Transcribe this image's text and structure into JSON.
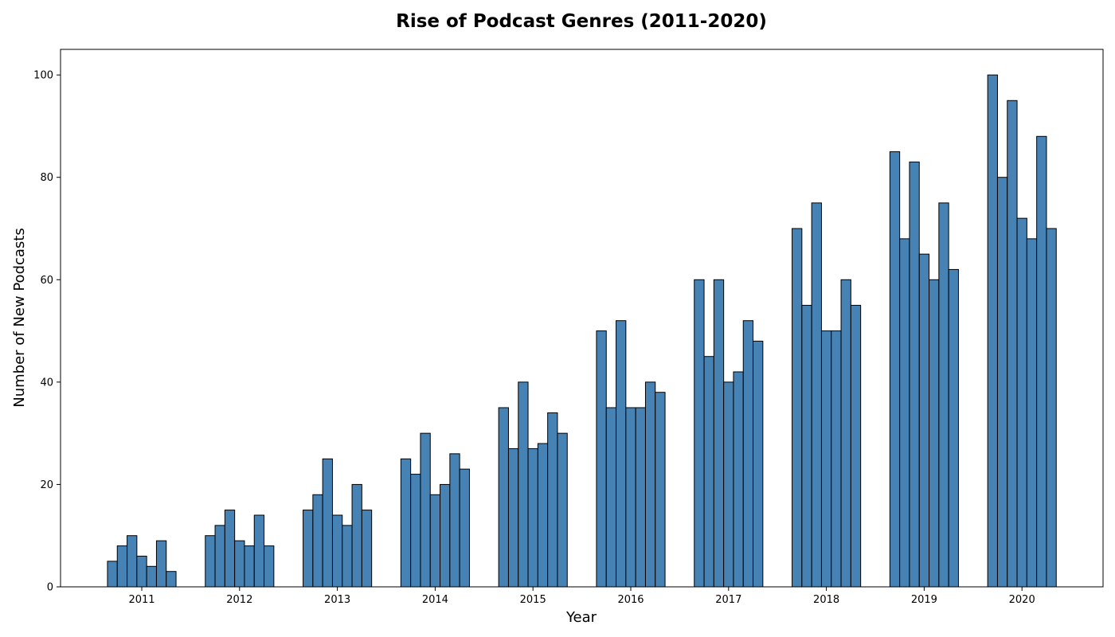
{
  "chart_data": {
    "type": "bar",
    "title": "Rise of Podcast Genres (2011-2020)",
    "xlabel": "Year",
    "ylabel": "Number of New Podcasts",
    "ylim": [
      0,
      105
    ],
    "yticks": [
      0,
      20,
      40,
      60,
      80,
      100
    ],
    "grid": false,
    "legend": "none",
    "bar_color": "#4682b4",
    "edge_color": "#000000",
    "categories": [
      "2011",
      "2012",
      "2013",
      "2014",
      "2015",
      "2016",
      "2017",
      "2018",
      "2019",
      "2020"
    ],
    "series": [
      {
        "values": [
          5,
          10,
          15,
          25,
          35,
          50,
          60,
          70,
          85,
          100
        ]
      },
      {
        "values": [
          8,
          12,
          18,
          22,
          27,
          35,
          45,
          55,
          68,
          80
        ]
      },
      {
        "values": [
          10,
          15,
          25,
          30,
          40,
          52,
          60,
          75,
          83,
          95
        ]
      },
      {
        "values": [
          6,
          9,
          14,
          18,
          27,
          35,
          40,
          50,
          65,
          72
        ]
      },
      {
        "values": [
          4,
          8,
          12,
          20,
          28,
          35,
          42,
          50,
          60,
          68
        ]
      },
      {
        "values": [
          9,
          14,
          20,
          26,
          34,
          40,
          52,
          60,
          75,
          88
        ]
      },
      {
        "values": [
          3,
          8,
          15,
          23,
          30,
          38,
          48,
          55,
          62,
          70
        ]
      }
    ]
  }
}
